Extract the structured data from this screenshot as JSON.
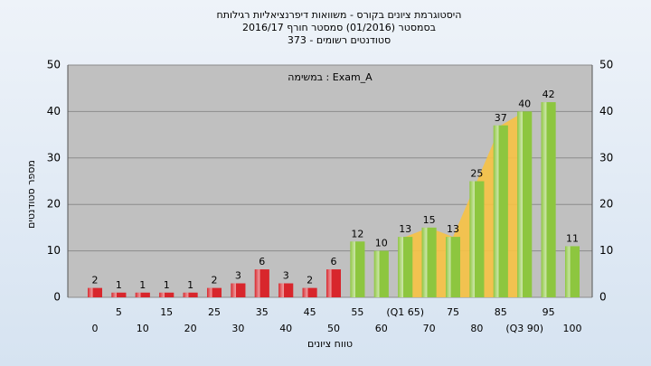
{
  "chart_data": {
    "type": "bar",
    "title": [
      "היסטוגרמת ציונים בקורס - משוואות דיפרנציאליות רגילותח",
      "בסמסטר  (01/2016)  סמסטר חורף 2016/17",
      "סטודנטים רשומים - 373"
    ],
    "annotation": "במשימה : Exam_A",
    "y_label": "מספר סטודנטים",
    "x_label": "טווח ציונים",
    "categories": [
      "0",
      "5",
      "10",
      "15",
      "20",
      "25",
      "30",
      "35",
      "40",
      "45",
      "50",
      "55",
      "60",
      "(Q1 65)",
      "70",
      "75",
      "80",
      "85",
      "(Q3 90)",
      "95",
      "100"
    ],
    "values": [
      2,
      1,
      1,
      1,
      1,
      2,
      3,
      6,
      3,
      2,
      6,
      12,
      10,
      13,
      15,
      13,
      25,
      37,
      40,
      42,
      11
    ],
    "colors": [
      "#d8262c",
      "#d8262c",
      "#d8262c",
      "#d8262c",
      "#d8262c",
      "#d8262c",
      "#d8262c",
      "#d8262c",
      "#d8262c",
      "#d8262c",
      "#d8262c",
      "#8dc63f",
      "#8dc63f",
      "#8dc63f",
      "#8dc63f",
      "#8dc63f",
      "#8dc63f",
      "#8dc63f",
      "#8dc63f",
      "#8dc63f",
      "#8dc63f"
    ],
    "ylim": [
      0,
      50
    ],
    "yticks": [
      0,
      10,
      20,
      30,
      40,
      50
    ],
    "grid": true
  }
}
